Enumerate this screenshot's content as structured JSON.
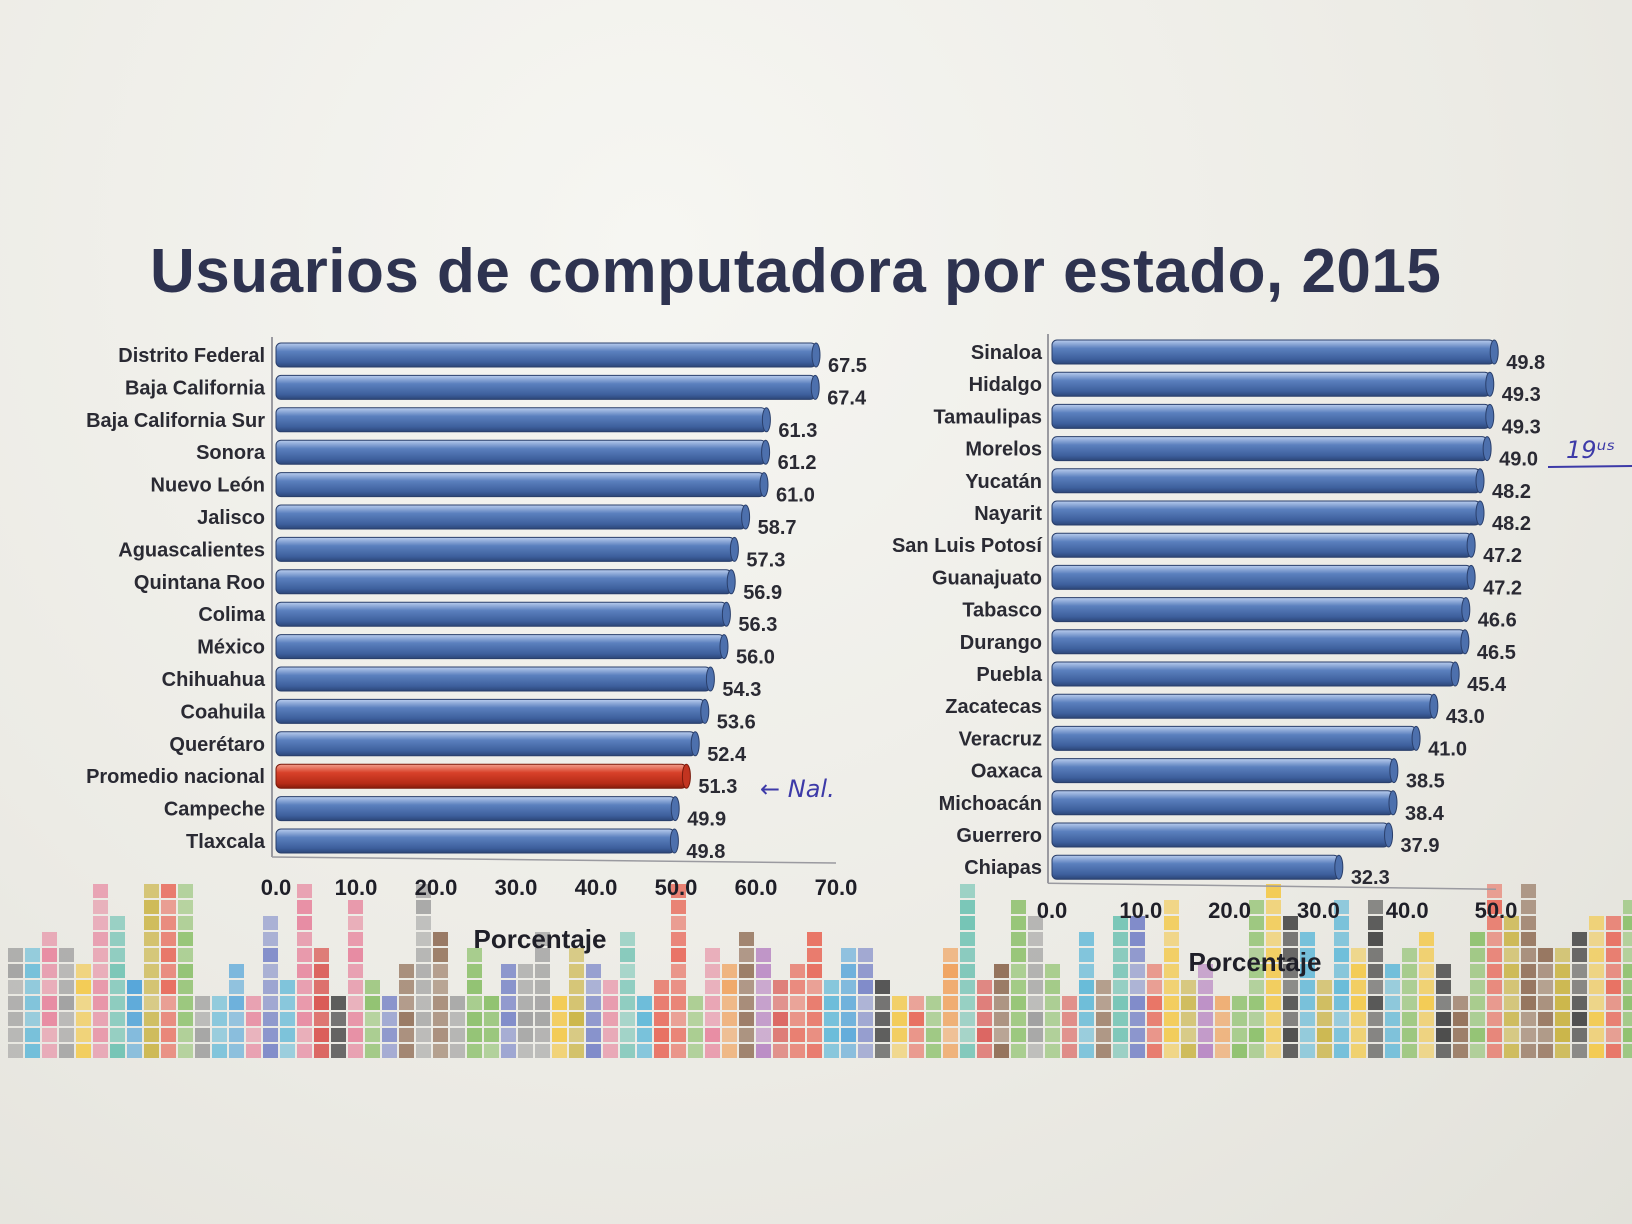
{
  "title": "Usuarios de computadora por estado, 2015",
  "colors": {
    "bar": "#4f74b3",
    "highlight": "#d33a22",
    "text": "#2a2a33",
    "ink": "#3d3aa8"
  },
  "chart_data": [
    {
      "type": "bar",
      "orientation": "horizontal",
      "categories": [
        "Distrito Federal",
        "Baja California",
        "Baja California Sur",
        "Sonora",
        "Nuevo León",
        "Jalisco",
        "Aguascalientes",
        "Quintana Roo",
        "Colima",
        "México",
        "Chihuahua",
        "Coahuila",
        "Querétaro",
        "Promedio nacional",
        "Campeche",
        "Tlaxcala"
      ],
      "values": [
        67.5,
        67.4,
        61.3,
        61.2,
        61.0,
        58.7,
        57.3,
        56.9,
        56.3,
        56.0,
        54.3,
        53.6,
        52.4,
        51.3,
        49.9,
        49.8
      ],
      "value_labels": [
        "67.5",
        "67.4",
        "61.3",
        "61.2",
        "61.0",
        "58.7",
        "57.3",
        "56.9",
        "56.3",
        "56.0",
        "54.3",
        "53.6",
        "52.4",
        "51.3",
        "49.9",
        "49.8"
      ],
      "highlight_category": "Promedio nacional",
      "xlim": [
        0,
        70
      ],
      "ticks": [
        "0.0",
        "10.0",
        "20.0",
        "30.0",
        "40.0",
        "50.0",
        "60.0",
        "70.0"
      ],
      "xlabel": "Porcentaje",
      "annotation": "← Nal."
    },
    {
      "type": "bar",
      "orientation": "horizontal",
      "categories": [
        "Sinaloa",
        "Hidalgo",
        "Tamaulipas",
        "Morelos",
        "Yucatán",
        "Nayarit",
        "San Luis Potosí",
        "Guanajuato",
        "Tabasco",
        "Durango",
        "Puebla",
        "Zacatecas",
        "Veracruz",
        "Oaxaca",
        "Michoacán",
        "Guerrero",
        "Chiapas"
      ],
      "values": [
        49.8,
        49.3,
        49.3,
        49.0,
        48.2,
        48.2,
        47.2,
        47.2,
        46.6,
        46.5,
        45.4,
        43.0,
        41.0,
        38.5,
        38.4,
        37.9,
        32.3
      ],
      "value_labels": [
        "49.8",
        "49.3",
        "49.3",
        "49.0",
        "48.2",
        "48.2",
        "47.2",
        "47.2",
        "46.6",
        "46.5",
        "45.4",
        "43.0",
        "41.0",
        "38.5",
        "38.4",
        "37.9",
        "32.3"
      ],
      "xlim": [
        0,
        50
      ],
      "ticks": [
        "0.0",
        "10.0",
        "20.0",
        "30.0",
        "40.0",
        "50.0"
      ],
      "xlabel": "Porcentaje",
      "annotation": "19ᵘˢ"
    }
  ]
}
